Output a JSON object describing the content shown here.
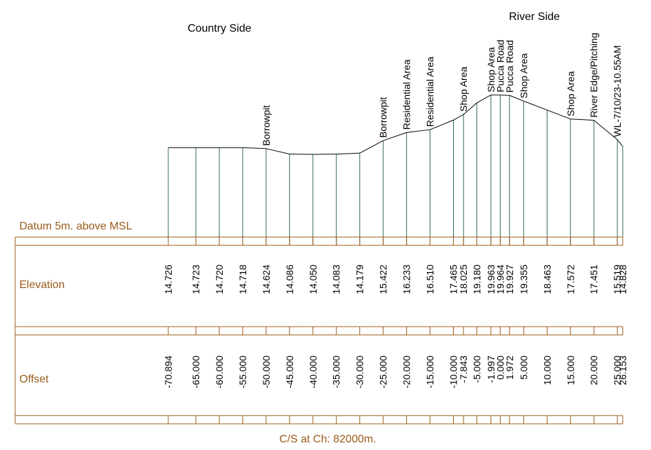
{
  "header": {
    "country_side": "Country Side",
    "river_side": "River Side"
  },
  "table": {
    "datum_label": "Datum 5m. above MSL",
    "elevation_label": "Elevation",
    "offset_label": "Offset",
    "footer": "C/S at Ch: 82000m."
  },
  "colors": {
    "profile": "#000000",
    "stations": "#2e6b4f",
    "grid": "#9a5b19",
    "table_text": "#9a5b19"
  },
  "chart_data": {
    "type": "line",
    "title": "C/S at Ch: 82000m.",
    "datum": "Datum 5m. above MSL",
    "xlabel": "Offset",
    "ylabel": "Elevation",
    "points": [
      {
        "offset": "-70.894",
        "elevation": "14.726",
        "x": -70.894,
        "y": 14.726,
        "label": ""
      },
      {
        "offset": "-65.000",
        "elevation": "14.723",
        "x": -65.0,
        "y": 14.723,
        "label": ""
      },
      {
        "offset": "-60.000",
        "elevation": "14.720",
        "x": -60.0,
        "y": 14.72,
        "label": ""
      },
      {
        "offset": "-55.000",
        "elevation": "14.718",
        "x": -55.0,
        "y": 14.718,
        "label": ""
      },
      {
        "offset": "-50.000",
        "elevation": "14.624",
        "x": -50.0,
        "y": 14.624,
        "label": "Borrowpit"
      },
      {
        "offset": "-45.000",
        "elevation": "14.086",
        "x": -45.0,
        "y": 14.086,
        "label": ""
      },
      {
        "offset": "-40.000",
        "elevation": "14.050",
        "x": -40.0,
        "y": 14.05,
        "label": ""
      },
      {
        "offset": "-35.000",
        "elevation": "14.083",
        "x": -35.0,
        "y": 14.083,
        "label": ""
      },
      {
        "offset": "-30.000",
        "elevation": "14.179",
        "x": -30.0,
        "y": 14.179,
        "label": ""
      },
      {
        "offset": "-25.000",
        "elevation": "15.422",
        "x": -25.0,
        "y": 15.422,
        "label": "Borrowpit"
      },
      {
        "offset": "-20.000",
        "elevation": "16.233",
        "x": -20.0,
        "y": 16.233,
        "label": "Residential Area"
      },
      {
        "offset": "-15.000",
        "elevation": "16.510",
        "x": -15.0,
        "y": 16.51,
        "label": "Residential Area"
      },
      {
        "offset": "-10.000",
        "elevation": "17.465",
        "x": -10.0,
        "y": 17.465,
        "label": ""
      },
      {
        "offset": "-7.843",
        "elevation": "18.025",
        "x": -7.843,
        "y": 18.025,
        "label": "Shop Area"
      },
      {
        "offset": "-5.000",
        "elevation": "19.180",
        "x": -5.0,
        "y": 19.18,
        "label": ""
      },
      {
        "offset": "-1.997",
        "elevation": "19.963",
        "x": -1.997,
        "y": 19.963,
        "label": "Shop Area"
      },
      {
        "offset": "0.000",
        "elevation": "19.964",
        "x": 0.0,
        "y": 19.964,
        "label": "Pucca Road"
      },
      {
        "offset": "1.972",
        "elevation": "19.927",
        "x": 1.972,
        "y": 19.927,
        "label": "Pucca Road"
      },
      {
        "offset": "5.000",
        "elevation": "19.355",
        "x": 5.0,
        "y": 19.355,
        "label": "Shop Area"
      },
      {
        "offset": "10.000",
        "elevation": "18.463",
        "x": 10.0,
        "y": 18.463,
        "label": ""
      },
      {
        "offset": "15.000",
        "elevation": "17.572",
        "x": 15.0,
        "y": 17.572,
        "label": "Shop Area"
      },
      {
        "offset": "20.000",
        "elevation": "17.451",
        "x": 20.0,
        "y": 17.451,
        "label": "River Edge/Pitching"
      },
      {
        "offset": "25.000",
        "elevation": "15.519",
        "x": 25.0,
        "y": 15.519,
        "label": "WL-7/10/23-10.55AM"
      },
      {
        "offset": "26.153",
        "elevation": "14.828",
        "x": 26.153,
        "y": 14.828,
        "label": ""
      }
    ]
  }
}
